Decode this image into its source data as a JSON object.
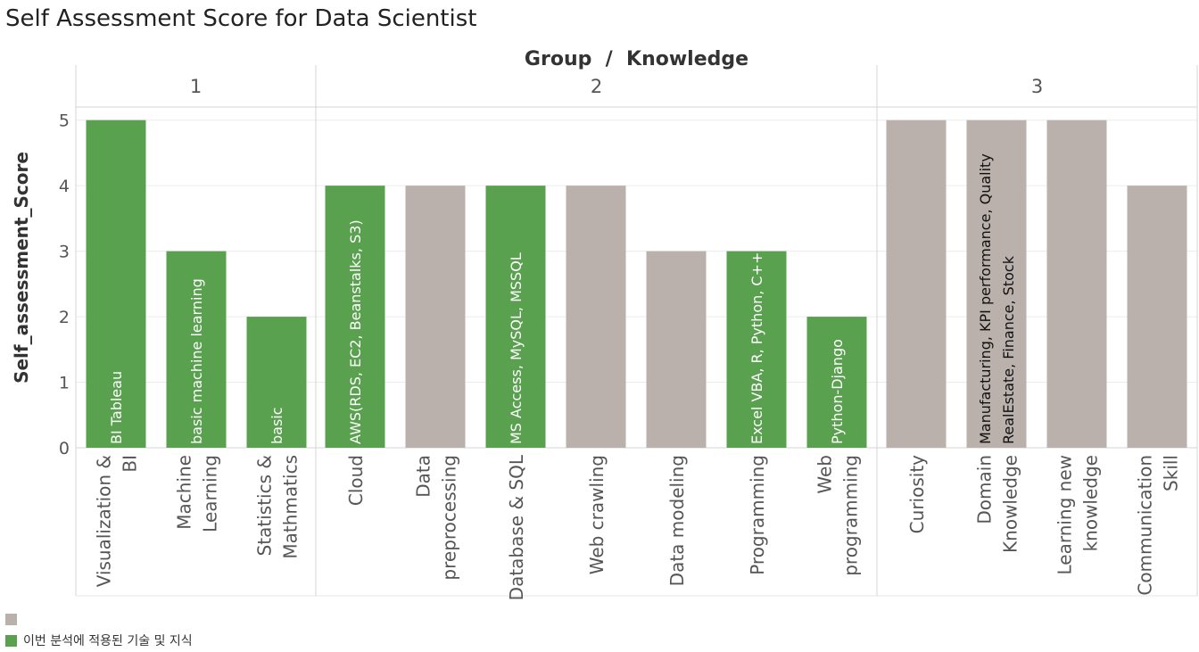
{
  "title": "Self Assessment Score for Data Scientist",
  "colors": {
    "applied": "#59a14f",
    "other": "#bab0ac",
    "grid": "#ececec",
    "divider": "#d4d4d4"
  },
  "legend": [
    {
      "label": "",
      "color": "#bab0ac"
    },
    {
      "label": "이번 분석에 적용된 기술 및 지식",
      "color": "#59a14f"
    }
  ],
  "chart_data": {
    "type": "bar",
    "header": "Group  /  Knowledge",
    "ylabel": "Self_assessment_Score",
    "ylim": [
      0,
      5.2
    ],
    "yticks": [
      0,
      1,
      2,
      3,
      4,
      5
    ],
    "groups": [
      "1",
      "2",
      "3"
    ],
    "bars": [
      {
        "group": "1",
        "category": [
          "Visualization &",
          "BI"
        ],
        "value": 5,
        "applied": true,
        "label": [
          "BI Tableau"
        ]
      },
      {
        "group": "1",
        "category": [
          "Machine",
          "Learning"
        ],
        "value": 3,
        "applied": true,
        "label": [
          "basic machine learning"
        ]
      },
      {
        "group": "1",
        "category": [
          "Statistics &",
          "Mathmatics"
        ],
        "value": 2,
        "applied": true,
        "label": [
          "basic"
        ]
      },
      {
        "group": "2",
        "category": [
          "Cloud"
        ],
        "value": 4,
        "applied": true,
        "label": [
          "AWS(RDS, EC2, Beanstalks, S3)"
        ]
      },
      {
        "group": "2",
        "category": [
          "Data",
          "preprocessing"
        ],
        "value": 4,
        "applied": false,
        "label": []
      },
      {
        "group": "2",
        "category": [
          "Database & SQL"
        ],
        "value": 4,
        "applied": true,
        "label": [
          "MS Access, MySQL, MSSQL"
        ]
      },
      {
        "group": "2",
        "category": [
          "Web crawling"
        ],
        "value": 4,
        "applied": false,
        "label": []
      },
      {
        "group": "2",
        "category": [
          "Data modeling"
        ],
        "value": 3,
        "applied": false,
        "label": []
      },
      {
        "group": "2",
        "category": [
          "Programming"
        ],
        "value": 3,
        "applied": true,
        "label": [
          "Excel VBA, R, Python, C++"
        ]
      },
      {
        "group": "2",
        "category": [
          "Web",
          "programming"
        ],
        "value": 2,
        "applied": true,
        "label": [
          "Python-Django"
        ]
      },
      {
        "group": "3",
        "category": [
          "Curiosity"
        ],
        "value": 5,
        "applied": false,
        "label": []
      },
      {
        "group": "3",
        "category": [
          "Domain",
          "Knowledge"
        ],
        "value": 5,
        "applied": false,
        "label": [
          "Manufacturing, KPI performance, Quality",
          "RealEstate, Finance,  Stock"
        ]
      },
      {
        "group": "3",
        "category": [
          "Learning new",
          "knowledge"
        ],
        "value": 5,
        "applied": false,
        "label": []
      },
      {
        "group": "3",
        "category": [
          "Communication",
          "Skill"
        ],
        "value": 4,
        "applied": false,
        "label": []
      }
    ]
  }
}
